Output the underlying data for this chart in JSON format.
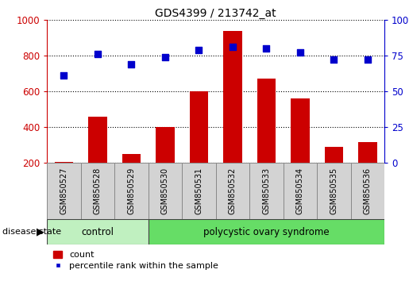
{
  "title": "GDS4399 / 213742_at",
  "samples": [
    "GSM850527",
    "GSM850528",
    "GSM850529",
    "GSM850530",
    "GSM850531",
    "GSM850532",
    "GSM850533",
    "GSM850534",
    "GSM850535",
    "GSM850536"
  ],
  "count_values": [
    205,
    460,
    248,
    400,
    600,
    935,
    670,
    560,
    290,
    318
  ],
  "percentile_values": [
    61,
    76,
    69,
    74,
    79,
    81,
    80,
    77,
    72,
    72
  ],
  "bar_color": "#cc0000",
  "dot_color": "#0000cc",
  "ylim_left": [
    200,
    1000
  ],
  "yticks_left": [
    200,
    400,
    600,
    800,
    1000
  ],
  "ylim_right": [
    0,
    100
  ],
  "yticks_right": [
    0,
    25,
    50,
    75,
    100
  ],
  "ylabel_left_color": "#cc0000",
  "ylabel_right_color": "#0000cc",
  "grid_color": "black",
  "control_samples": 3,
  "control_label": "control",
  "disease_label": "polycystic ovary syndrome",
  "disease_state_label": "disease state",
  "control_color": "#c0f0c0",
  "disease_color": "#66dd66",
  "group_box_color": "#d3d3d3",
  "legend_count_label": "count",
  "legend_percentile_label": "percentile rank within the sample",
  "figsize": [
    5.15,
    3.54
  ],
  "dpi": 100
}
